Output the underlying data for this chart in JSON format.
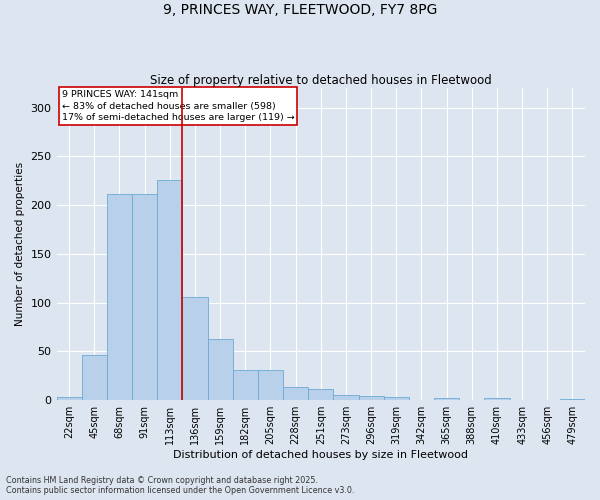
{
  "title_line1": "9, PRINCES WAY, FLEETWOOD, FY7 8PG",
  "title_line2": "Size of property relative to detached houses in Fleetwood",
  "xlabel": "Distribution of detached houses by size in Fleetwood",
  "ylabel": "Number of detached properties",
  "categories": [
    "22sqm",
    "45sqm",
    "68sqm",
    "91sqm",
    "113sqm",
    "136sqm",
    "159sqm",
    "182sqm",
    "205sqm",
    "228sqm",
    "251sqm",
    "273sqm",
    "296sqm",
    "319sqm",
    "342sqm",
    "365sqm",
    "388sqm",
    "410sqm",
    "433sqm",
    "456sqm",
    "479sqm"
  ],
  "values": [
    3,
    46,
    211,
    211,
    226,
    106,
    63,
    31,
    31,
    14,
    12,
    5,
    4,
    3,
    0,
    2,
    0,
    2,
    0,
    0,
    1
  ],
  "bar_color": "#b8d0ea",
  "bar_edge_color": "#6aaad4",
  "background_color": "#dde6f0",
  "grid_color": "#ffffff",
  "vline_x": 4.5,
  "vline_color": "#cc0000",
  "annotation_text": "9 PRINCES WAY: 141sqm\n← 83% of detached houses are smaller (598)\n17% of semi-detached houses are larger (119) →",
  "annotation_box_color": "#cc0000",
  "ylim": [
    0,
    320
  ],
  "yticks": [
    0,
    50,
    100,
    150,
    200,
    250,
    300
  ],
  "footer_line1": "Contains HM Land Registry data © Crown copyright and database right 2025.",
  "footer_line2": "Contains public sector information licensed under the Open Government Licence v3.0."
}
